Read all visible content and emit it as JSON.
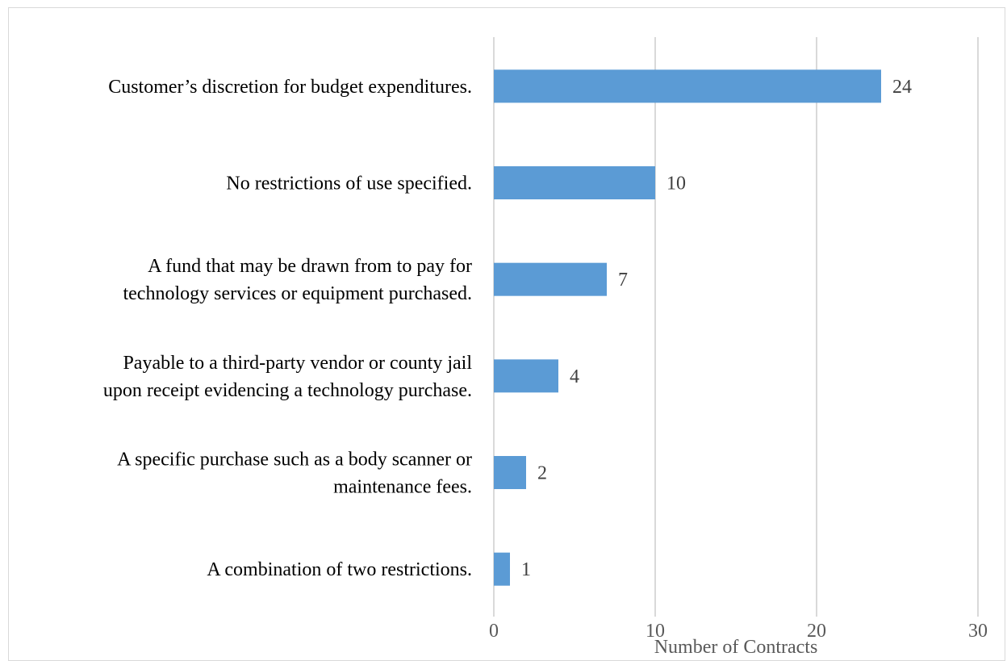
{
  "chart_data": {
    "type": "bar",
    "orientation": "horizontal",
    "categories": [
      [
        "Customer’s discretion for budget expenditures."
      ],
      [
        "No restrictions of use specified."
      ],
      [
        "A fund that may be drawn from to pay for",
        "technology services or equipment purchased."
      ],
      [
        "Payable to a third-party vendor or county jail",
        "upon receipt evidencing a technology purchase."
      ],
      [
        "A specific purchase such as a body scanner or",
        "maintenance fees."
      ],
      [
        "A combination of two restrictions."
      ]
    ],
    "values": [
      24,
      10,
      7,
      4,
      2,
      1
    ],
    "xlabel": "Number of Contracts",
    "xlim": [
      0,
      30
    ],
    "xticks": [
      0,
      10,
      20,
      30
    ],
    "grid": true,
    "legend": "none",
    "data_labels": true,
    "colors": {
      "bar": "#5b9bd5",
      "grid": "#d9d9d9"
    }
  }
}
